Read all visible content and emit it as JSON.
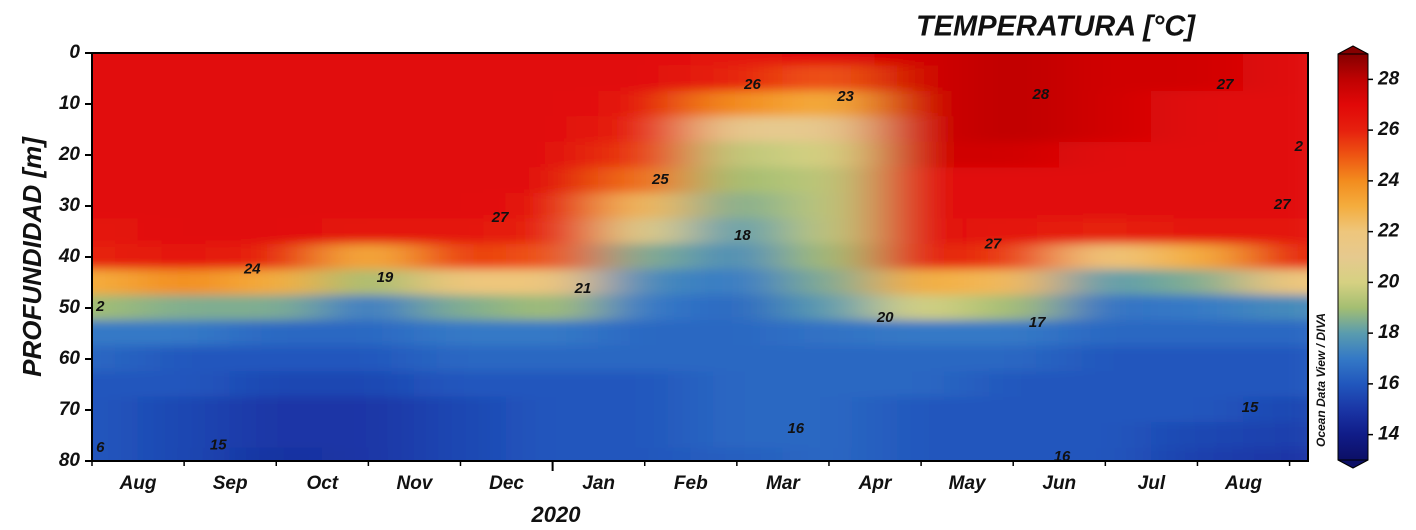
{
  "chart_data": {
    "type": "contour",
    "title": "TEMPERATURA [°C]",
    "y_label": "PROFUNDIDAD [m]",
    "x_title": "2020",
    "credit": "Ocean Data View / DIVA",
    "xlim": [
      0,
      13.2
    ],
    "ylim": [
      0,
      80
    ],
    "y_inverted": true,
    "yticks": [
      0,
      10,
      20,
      30,
      40,
      50,
      60,
      70,
      80
    ],
    "xticks": [
      0,
      1,
      2,
      3,
      4,
      5,
      6,
      7,
      8,
      9,
      10,
      11,
      12,
      13
    ],
    "major_xticks": [
      5
    ],
    "month_labels": [
      "Aug",
      "Sep",
      "Oct",
      "Nov",
      "Dec",
      "Jan",
      "Feb",
      "Mar",
      "Apr",
      "May",
      "Jun",
      "Jul",
      "Aug"
    ],
    "x": [
      0,
      1,
      2,
      3,
      4,
      5,
      6,
      7,
      8,
      9,
      10,
      11,
      12,
      13
    ],
    "y": [
      0,
      5,
      10,
      15,
      20,
      25,
      30,
      35,
      40,
      45,
      50,
      55,
      60,
      65,
      70,
      75,
      80
    ],
    "z": [
      [
        27,
        27,
        27,
        27,
        27,
        27,
        27,
        26.5,
        27,
        27.5,
        28,
        27.5,
        27.5,
        27
      ],
      [
        27,
        27,
        27,
        27,
        27,
        27,
        27,
        26,
        25,
        27.5,
        28,
        27.5,
        27.5,
        27
      ],
      [
        27,
        27,
        27,
        27,
        27,
        27,
        26.5,
        24,
        23,
        27.5,
        28,
        27.5,
        27,
        27
      ],
      [
        27,
        27,
        27,
        27,
        27,
        27,
        26,
        21,
        21,
        27.5,
        28,
        27.5,
        27,
        27
      ],
      [
        27,
        27,
        27,
        27,
        27,
        27,
        25.5,
        19.5,
        20,
        27.5,
        27.5,
        27,
        27,
        27
      ],
      [
        27,
        27,
        27,
        27,
        27,
        27,
        24.5,
        19,
        19.5,
        27,
        27,
        27,
        27,
        27
      ],
      [
        27,
        27,
        27,
        27,
        27,
        26.5,
        22.5,
        18.5,
        19.5,
        27,
        27,
        27,
        27,
        27
      ],
      [
        26.5,
        27,
        27,
        26.5,
        26.5,
        26,
        20.5,
        18,
        19.5,
        27,
        26.5,
        26,
        26.5,
        26.5
      ],
      [
        26,
        26.5,
        26,
        23,
        25.5,
        25,
        18.5,
        17.5,
        19,
        26.5,
        25.5,
        22,
        23,
        26
      ],
      [
        23,
        24,
        23,
        19,
        22,
        22,
        17.5,
        17,
        18.5,
        23,
        22.5,
        18,
        18.5,
        22
      ],
      [
        19,
        18.5,
        18.5,
        17,
        18.5,
        19,
        17,
        16.5,
        18,
        20,
        19,
        16.8,
        17,
        17.5
      ],
      [
        17,
        17,
        16.5,
        16.5,
        17,
        17,
        16.5,
        16.5,
        16.8,
        17,
        17,
        16.5,
        16.5,
        16.5
      ],
      [
        16.5,
        16,
        16,
        16,
        16.5,
        16.5,
        16.5,
        16.5,
        16.5,
        16.5,
        16.5,
        16,
        16,
        16
      ],
      [
        16,
        16,
        15.5,
        15.5,
        16,
        16,
        16,
        16.5,
        16.5,
        16.5,
        16,
        16,
        16,
        16
      ],
      [
        16,
        15.5,
        15,
        15,
        15.5,
        16,
        16,
        16.5,
        16.5,
        16,
        16,
        16,
        16,
        15.5
      ],
      [
        16,
        15.5,
        15,
        15,
        15.5,
        16,
        16,
        16.5,
        16.5,
        16,
        16,
        16,
        15.5,
        15.3
      ],
      [
        16,
        15.5,
        14.8,
        15,
        15.5,
        16,
        16,
        16.2,
        16.5,
        16,
        16,
        16,
        15.3,
        15
      ]
    ],
    "colorbar": {
      "lim": [
        13,
        29
      ],
      "ticks": [
        14,
        16,
        18,
        20,
        22,
        24,
        26,
        28
      ]
    },
    "colorscale": [
      {
        "value": 13,
        "color": "#0c0f66"
      },
      {
        "value": 14,
        "color": "#101c88"
      },
      {
        "value": 15,
        "color": "#1a36a6"
      },
      {
        "value": 16,
        "color": "#2157bd"
      },
      {
        "value": 17,
        "color": "#3479c6"
      },
      {
        "value": 18,
        "color": "#5a9cae"
      },
      {
        "value": 19,
        "color": "#a3be72"
      },
      {
        "value": 20,
        "color": "#d6d182"
      },
      {
        "value": 21,
        "color": "#e6c98e"
      },
      {
        "value": 22,
        "color": "#eec67c"
      },
      {
        "value": 23,
        "color": "#f4ad3e"
      },
      {
        "value": 24,
        "color": "#f38c1e"
      },
      {
        "value": 25,
        "color": "#ee5512"
      },
      {
        "value": 26,
        "color": "#e6200e"
      },
      {
        "value": 27,
        "color": "#e10808"
      },
      {
        "value": 28,
        "color": "#bf0202"
      },
      {
        "value": 29,
        "color": "#850000"
      }
    ],
    "contour_labels": [
      {
        "value": 26,
        "x": 7.17,
        "y": 6.3
      },
      {
        "value": 23,
        "x": 8.18,
        "y": 8.6
      },
      {
        "value": 28,
        "x": 10.3,
        "y": 8.2
      },
      {
        "value": 27,
        "x": 12.3,
        "y": 6.3
      },
      {
        "value": 2,
        "x": 13.1,
        "y": 18.4
      },
      {
        "value": 25,
        "x": 6.17,
        "y": 24.9
      },
      {
        "value": 27,
        "x": 4.43,
        "y": 32.4
      },
      {
        "value": 24,
        "x": 1.74,
        "y": 42.5
      },
      {
        "value": 19,
        "x": 3.18,
        "y": 44.1
      },
      {
        "value": 21,
        "x": 5.33,
        "y": 46.3
      },
      {
        "value": 18,
        "x": 7.06,
        "y": 35.9
      },
      {
        "value": 27,
        "x": 9.78,
        "y": 37.6
      },
      {
        "value": 27,
        "x": 12.92,
        "y": 29.8
      },
      {
        "value": 20,
        "x": 8.61,
        "y": 52
      },
      {
        "value": 17,
        "x": 10.26,
        "y": 52.9
      },
      {
        "value": 16,
        "x": 7.64,
        "y": 73.7
      },
      {
        "value": 15,
        "x": 1.37,
        "y": 77
      },
      {
        "value": 15,
        "x": 12.57,
        "y": 69.6
      },
      {
        "value": 16,
        "x": 10.53,
        "y": 79.2
      },
      {
        "value": 2,
        "x": 0.09,
        "y": 49.8
      },
      {
        "value": 6,
        "x": 0.09,
        "y": 77.5
      }
    ]
  }
}
